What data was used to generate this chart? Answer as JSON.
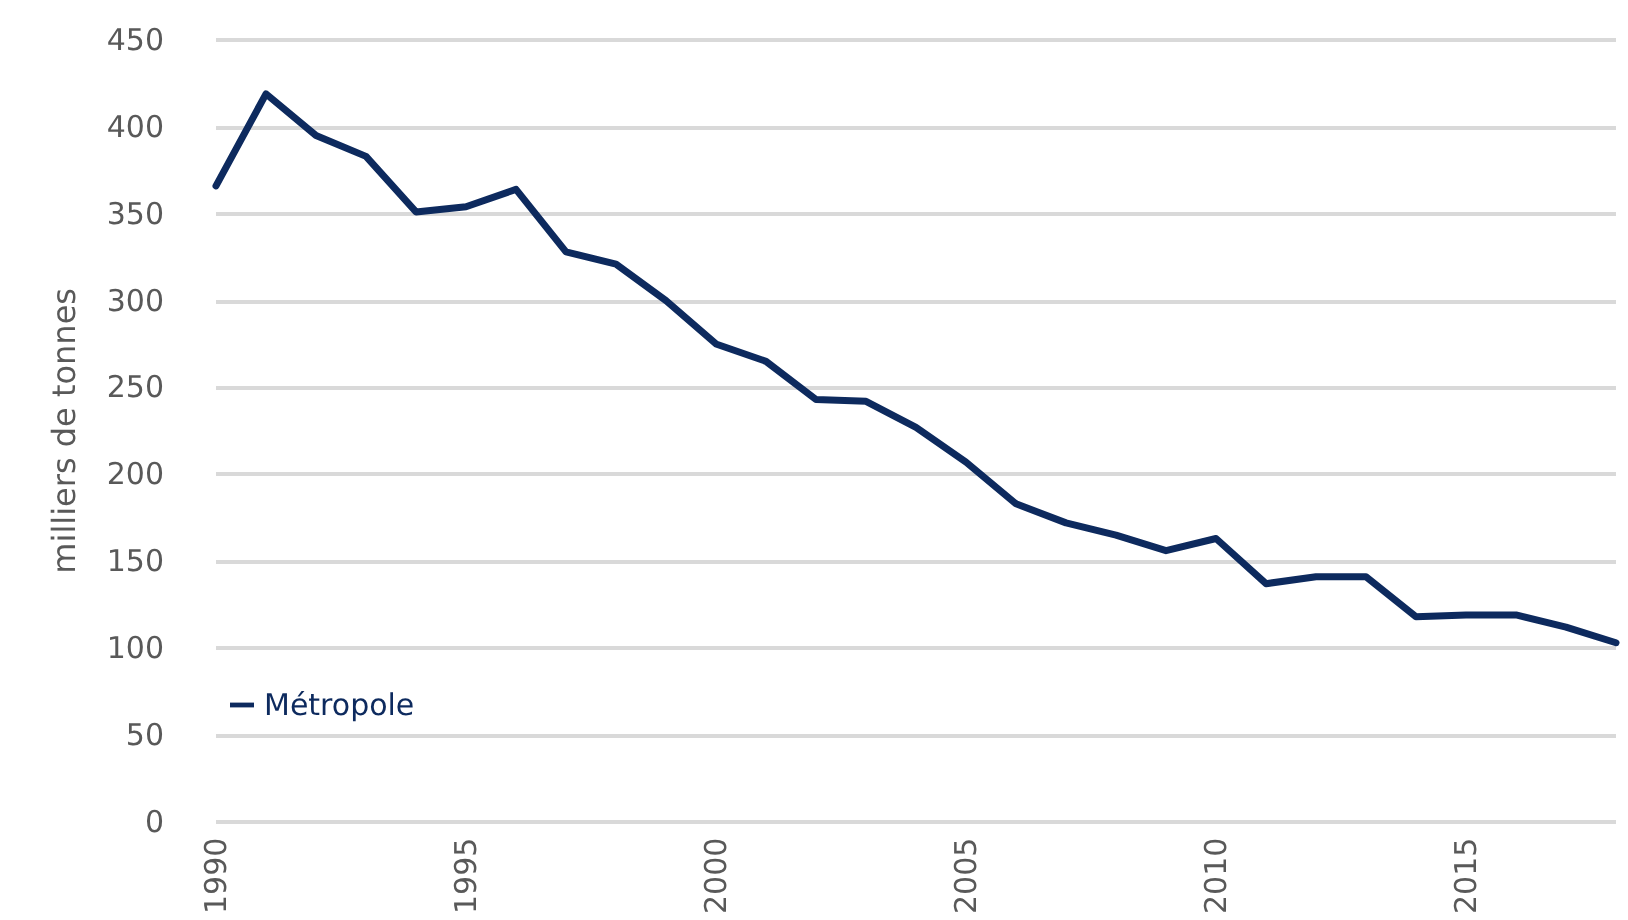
{
  "chart_data": {
    "type": "line",
    "ylabel": "milliers de tonnes",
    "x": [
      1990,
      1991,
      1992,
      1993,
      1994,
      1995,
      1996,
      1997,
      1998,
      1999,
      2000,
      2001,
      2002,
      2003,
      2004,
      2005,
      2006,
      2007,
      2008,
      2009,
      2010,
      2011,
      2012,
      2013,
      2014,
      2015,
      2016,
      2017,
      2018
    ],
    "series": [
      {
        "name": "Métropole",
        "color": "#0d2a5e",
        "values": [
          366,
          419,
          395,
          383,
          351,
          354,
          364,
          328,
          321,
          300,
          275,
          265,
          243,
          242,
          227,
          207,
          183,
          172,
          165,
          156,
          163,
          137,
          141,
          141,
          118,
          119,
          119,
          112,
          103
        ]
      }
    ],
    "xlim": [
      1990,
      2018
    ],
    "xticks": [
      1990,
      1995,
      2000,
      2005,
      2010,
      2015
    ],
    "ylim": [
      0,
      450
    ],
    "yticks": [
      0,
      50,
      100,
      150,
      200,
      250,
      300,
      350,
      400,
      450
    ],
    "grid": "y",
    "legend": "bottom left",
    "marker": "none",
    "line_style": "solid"
  }
}
